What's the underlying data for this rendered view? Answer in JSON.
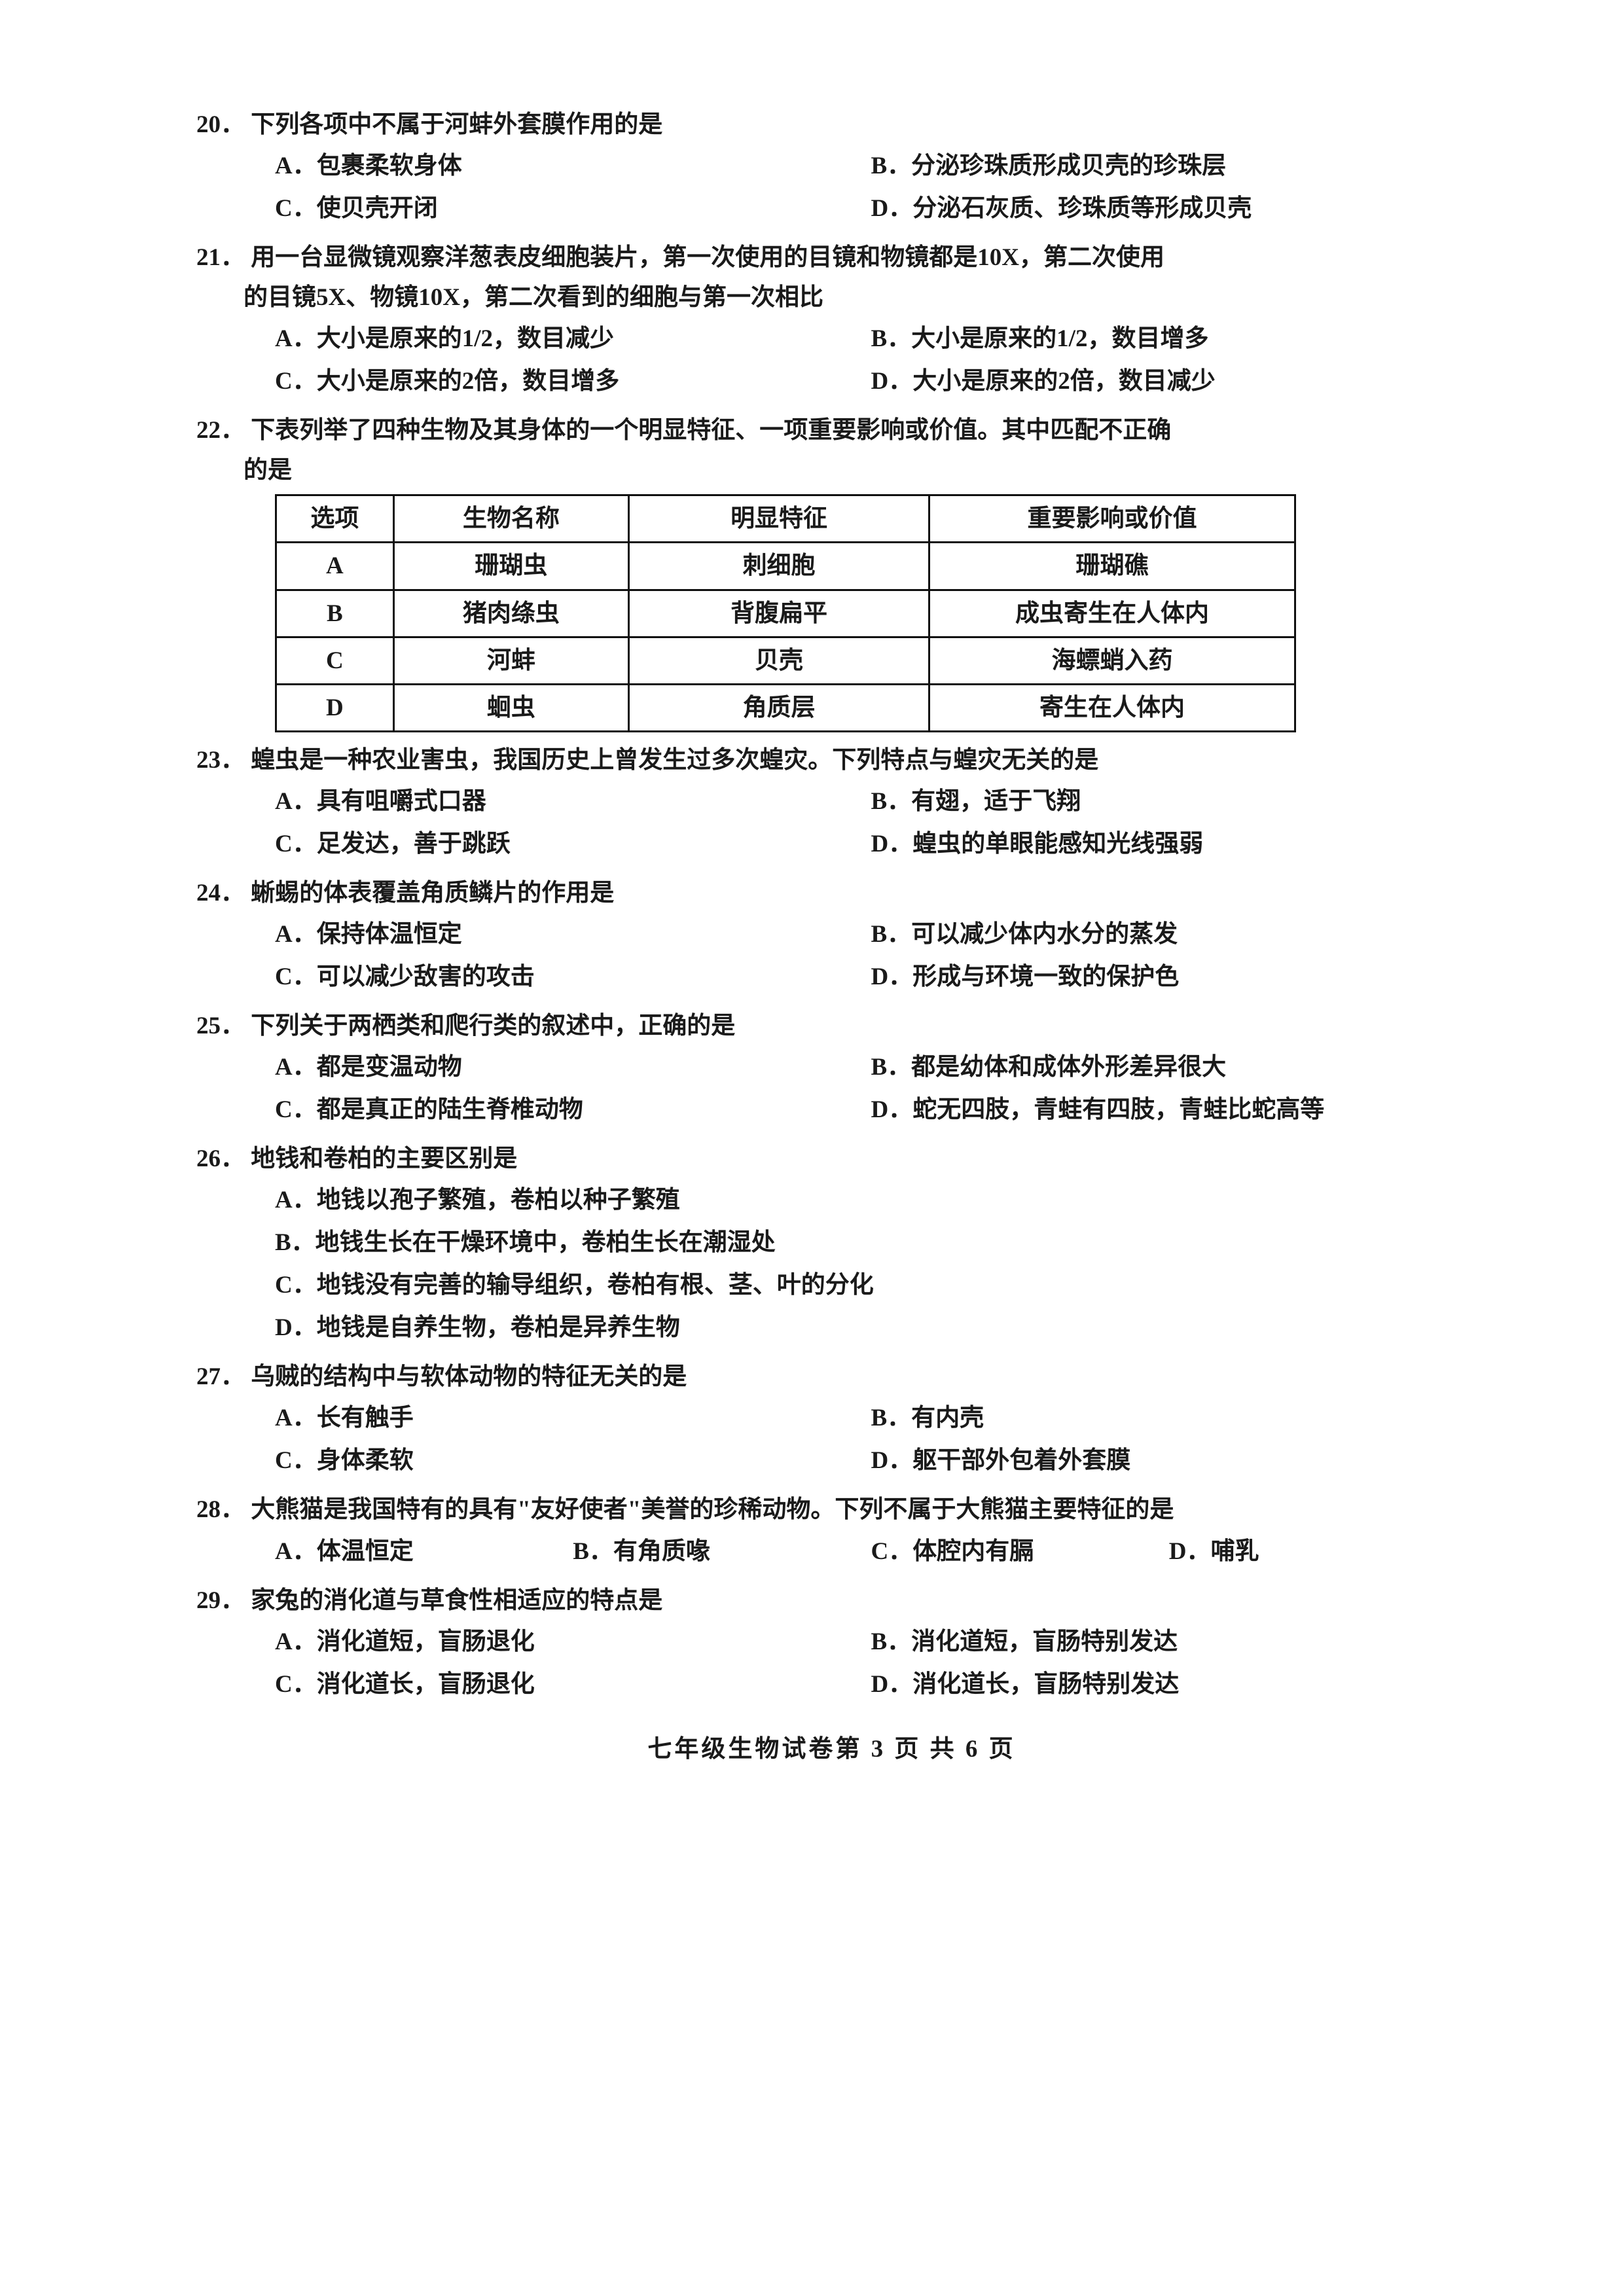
{
  "footer": "七年级生物试卷第 3 页 共 6 页",
  "q20": {
    "num": "20．",
    "stem": "下列各项中不属于河蚌外套膜作用的是",
    "A": "A．包裹柔软身体",
    "B": "B．分泌珍珠质形成贝壳的珍珠层",
    "C": "C．使贝壳开闭",
    "D": "D．分泌石灰质、珍珠质等形成贝壳"
  },
  "q21": {
    "num": "21．",
    "stem": "用一台显微镜观察洋葱表皮细胞装片，第一次使用的目镜和物镜都是10X，第二次使用",
    "stem2": "的目镜5X、物镜10X，第二次看到的细胞与第一次相比",
    "A": "A．大小是原来的1/2，数目减少",
    "B": "B．大小是原来的1/2，数目增多",
    "C": "C．大小是原来的2倍，数目增多",
    "D": "D．大小是原来的2倍，数目减少"
  },
  "q22": {
    "num": "22．",
    "stem": "下表列举了四种生物及其身体的一个明显特征、一项重要影响或价值。其中匹配不正确",
    "stem2": "的是",
    "table": {
      "head": [
        "选项",
        "生物名称",
        "明显特征",
        "重要影响或价值"
      ],
      "rows": [
        [
          "A",
          "珊瑚虫",
          "刺细胞",
          "珊瑚礁"
        ],
        [
          "B",
          "猪肉绦虫",
          "背腹扁平",
          "成虫寄生在人体内"
        ],
        [
          "C",
          "河蚌",
          "贝壳",
          "海螵蛸入药"
        ],
        [
          "D",
          "蛔虫",
          "角质层",
          "寄生在人体内"
        ]
      ],
      "col_widths": [
        "180px",
        "360px",
        "460px",
        "560px"
      ]
    }
  },
  "q23": {
    "num": "23．",
    "stem": "蝗虫是一种农业害虫，我国历史上曾发生过多次蝗灾。下列特点与蝗灾无关的是",
    "A": "A．具有咀嚼式口器",
    "B": "B．有翅，适于飞翔",
    "C": "C．足发达，善于跳跃",
    "D": "D．蝗虫的单眼能感知光线强弱"
  },
  "q24": {
    "num": "24．",
    "stem": "蜥蜴的体表覆盖角质鳞片的作用是",
    "A": "A．保持体温恒定",
    "B": "B．可以减少体内水分的蒸发",
    "C": "C．可以减少敌害的攻击",
    "D": "D．形成与环境一致的保护色"
  },
  "q25": {
    "num": "25．",
    "stem": "下列关于两栖类和爬行类的叙述中，正确的是",
    "A": "A．都是变温动物",
    "B": "B．都是幼体和成体外形差异很大",
    "C": "C．都是真正的陆生脊椎动物",
    "D": "D．蛇无四肢，青蛙有四肢，青蛙比蛇高等"
  },
  "q26": {
    "num": "26．",
    "stem": "地钱和卷柏的主要区别是",
    "A": "A．地钱以孢子繁殖，卷柏以种子繁殖",
    "B": "B．地钱生长在干燥环境中，卷柏生长在潮湿处",
    "C": "C．地钱没有完善的输导组织，卷柏有根、茎、叶的分化",
    "D": "D．地钱是自养生物，卷柏是异养生物"
  },
  "q27": {
    "num": "27．",
    "stem": "乌贼的结构中与软体动物的特征无关的是",
    "A": "A．长有触手",
    "B": "B．有内壳",
    "C": "C．身体柔软",
    "D": "D．躯干部外包着外套膜"
  },
  "q28": {
    "num": "28．",
    "stem": "大熊猫是我国特有的具有\"友好使者\"美誉的珍稀动物。下列不属于大熊猫主要特征的是",
    "A": "A．体温恒定",
    "B": "B．有角质喙",
    "C": "C．体腔内有膈",
    "D": "D．哺乳"
  },
  "q29": {
    "num": "29．",
    "stem": "家兔的消化道与草食性相适应的特点是",
    "A": "A．消化道短，盲肠退化",
    "B": "B．消化道短，盲肠特别发达",
    "C": "C．消化道长，盲肠退化",
    "D": "D．消化道长，盲肠特别发达"
  }
}
